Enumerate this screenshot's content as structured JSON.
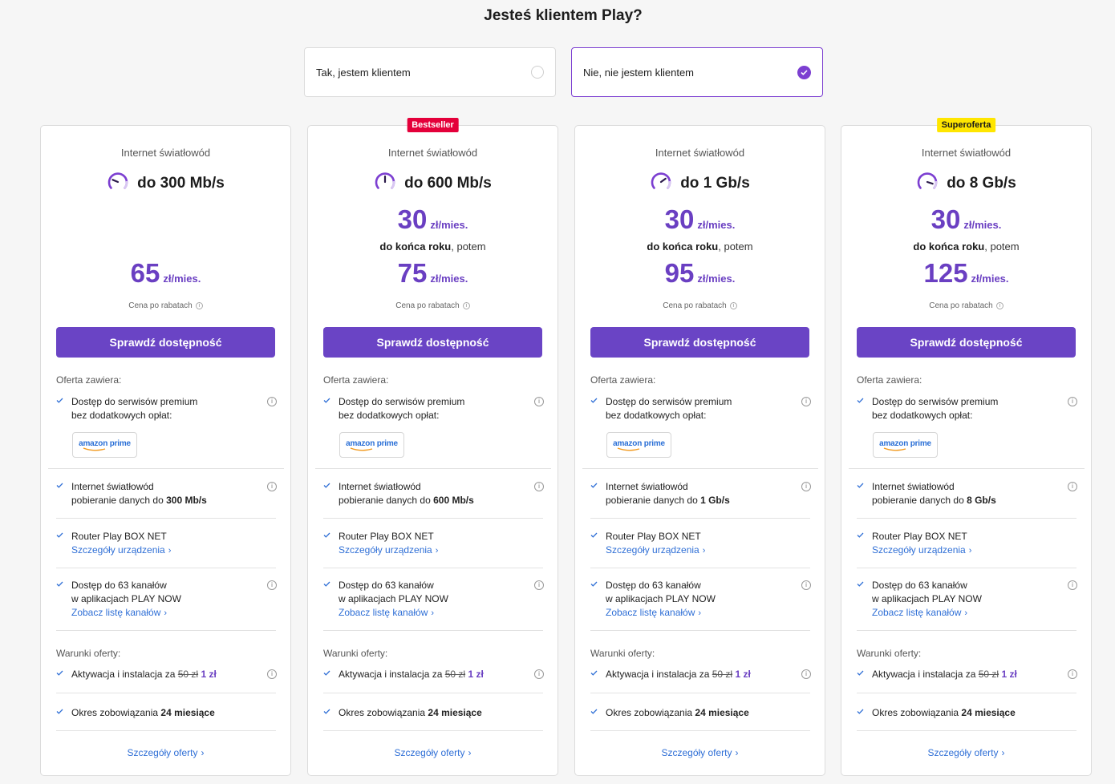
{
  "header": {
    "title": "Jesteś klientem Play?"
  },
  "client_choice": {
    "yes_label": "Tak, jestem klientem",
    "no_label": "Nie, nie jestem klientem",
    "selected": "no"
  },
  "common": {
    "cta_label": "Sprawdź dostępność",
    "discount_note": "Cena po rabatach",
    "offer_includes": "Oferta zawiera:",
    "premium_line1": "Dostęp do serwisów premium",
    "premium_line2": "bez dodatkowych opłat:",
    "amazon_label": "amazon prime",
    "speed_line1": "Internet światłowód",
    "speed_line2_prefix": "pobieranie danych do ",
    "router_line": "Router Play BOX NET",
    "router_link": "Szczegóły urządzenia",
    "channels_line1": "Dostęp do 63 kanałów",
    "channels_line2": "w aplikacjach PLAY NOW",
    "channels_link": "Zobacz listę kanałów",
    "conditions": "Warunki oferty:",
    "activation_prefix": "Aktywacja i instalacja za ",
    "activation_old": "50 zł",
    "activation_new": "1 zł",
    "commitment_prefix": "Okres zobowiązania ",
    "commitment_value": "24 miesiące",
    "details_link": "Szczegóły oferty",
    "chevron": "›",
    "promo_bold": "do końca roku",
    "promo_rest": ", potem",
    "unit": "zł/mies."
  },
  "plans": [
    {
      "badge": "",
      "badge_color": "",
      "tech": "Internet światłowód",
      "speed": "do 300 Mb/s",
      "speed_value": "300 Mb/s",
      "promo_price": "",
      "price": "65",
      "gauge": 0.25
    },
    {
      "badge": "Bestseller",
      "badge_color": "#e4003a",
      "tech": "Internet światłowód",
      "speed": "do 600 Mb/s",
      "speed_value": "600 Mb/s",
      "promo_price": "30",
      "price": "75",
      "gauge": 0.5
    },
    {
      "badge": "",
      "badge_color": "",
      "tech": "Internet światłowód",
      "speed": "do 1 Gb/s",
      "speed_value": "1 Gb/s",
      "promo_price": "30",
      "price": "95",
      "gauge": 0.7
    },
    {
      "badge": "Superoferta",
      "badge_color": "#ffe600",
      "tech": "Internet światłowód",
      "speed": "do 8 Gb/s",
      "speed_value": "8 Gb/s",
      "promo_price": "30",
      "price": "125",
      "gauge": 0.9
    }
  ],
  "colors": {
    "accent": "#6a44c5",
    "price": "#6a3fc2",
    "link": "#2f6fd6",
    "bestseller": "#e4003a",
    "superoferta": "#ffe600"
  },
  "icons": [
    "speedometer-icon",
    "check-icon",
    "info-icon",
    "chevron-right-icon",
    "check-circle-icon"
  ]
}
